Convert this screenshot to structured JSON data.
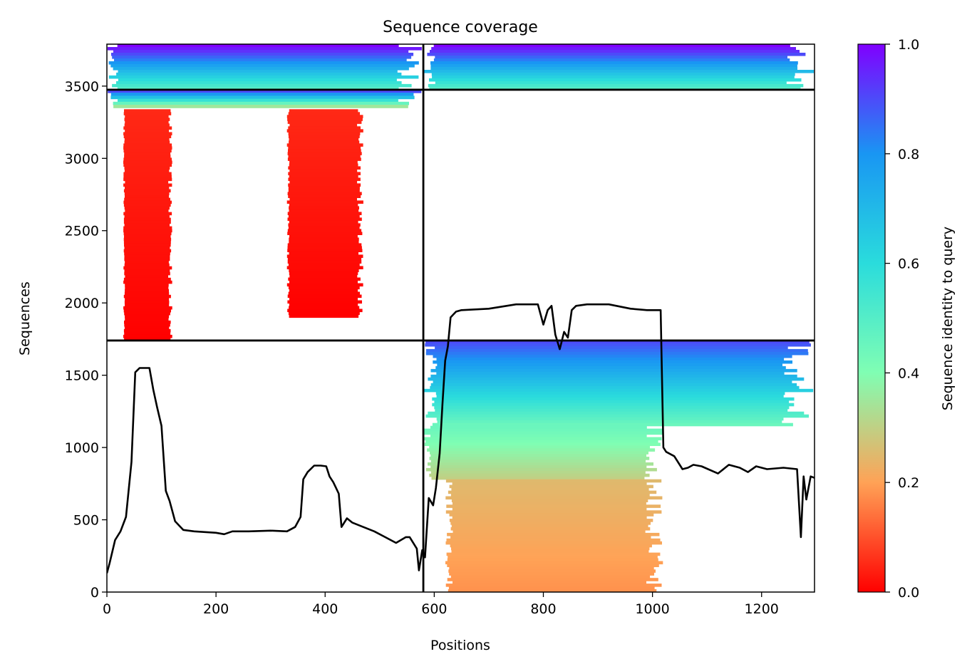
{
  "chart_data": {
    "type": "heatmap",
    "title": "Sequence coverage",
    "xlabel": "Positions",
    "ylabel": "Sequences",
    "xlim": [
      0,
      1297
    ],
    "ylim": [
      0,
      3790
    ],
    "x_ticks": [
      0,
      200,
      400,
      600,
      800,
      1000,
      1200
    ],
    "y_ticks": [
      0,
      500,
      1000,
      1500,
      2000,
      2500,
      3000,
      3500
    ],
    "colorbar": {
      "label": "Sequence identity to query",
      "range": [
        0,
        1
      ],
      "ticks": [
        0.0,
        0.2,
        0.4,
        0.6,
        0.8,
        1.0
      ],
      "tick_labels": [
        "0.0",
        "0.2",
        "0.4",
        "0.6",
        "0.8",
        "1.0"
      ],
      "colormap": "rainbow",
      "color_stops": [
        "#ff0000",
        "#ffa256",
        "#80feb3",
        "#2adcdc",
        "#1996f3",
        "#8000ff"
      ]
    },
    "block_boundaries": {
      "x": 580,
      "y": [
        1740,
        3475
      ]
    },
    "coverage_blocks": [
      {
        "x_range": [
          0,
          580
        ],
        "y_range": [
          3475,
          3790
        ],
        "identity_range": [
          0.5,
          1.0
        ],
        "note": "high identity (top)"
      },
      {
        "x_range": [
          580,
          1297
        ],
        "y_range": [
          3475,
          3790
        ],
        "identity_range": [
          0.5,
          1.0
        ]
      },
      {
        "x_range": [
          0,
          580
        ],
        "y_range": [
          3350,
          3475
        ],
        "identity_range": [
          0.35,
          0.9
        ]
      },
      {
        "x_range": [
          30,
          120
        ],
        "y_range": [
          1740,
          3340
        ],
        "identity_range": [
          0.0,
          0.05
        ]
      },
      {
        "x_range": [
          330,
          470
        ],
        "y_range": [
          1900,
          3340
        ],
        "identity_range": [
          0.0,
          0.05
        ]
      },
      {
        "x_range": [
          580,
          1297
        ],
        "y_range": [
          1150,
          1740
        ],
        "identity_range": [
          0.45,
          0.9
        ]
      },
      {
        "x_range": [
          580,
          1020
        ],
        "y_range": [
          780,
          1150
        ],
        "identity_range": [
          0.3,
          0.45
        ]
      },
      {
        "x_range": [
          620,
          1020
        ],
        "y_range": [
          0,
          780
        ],
        "identity_range": [
          0.18,
          0.25
        ]
      }
    ],
    "series": [
      {
        "type": "line",
        "color": "#000000",
        "x": [
          0,
          5,
          15,
          25,
          35,
          45,
          52,
          60,
          70,
          78,
          85,
          92,
          100,
          108,
          115,
          125,
          140,
          160,
          180,
          200,
          215,
          230,
          260,
          300,
          330,
          345,
          355,
          360,
          368,
          380,
          392,
          402,
          408,
          415,
          420,
          425,
          430,
          440,
          450,
          470,
          490,
          510,
          530,
          548,
          555,
          568,
          572,
          578,
          583,
          590,
          598,
          603,
          610,
          615,
          620,
          625,
          630,
          640,
          650,
          700,
          750,
          790,
          800,
          808,
          815,
          822,
          830,
          838,
          845,
          852,
          860,
          880,
          920,
          960,
          990,
          1015,
          1020,
          1025,
          1040,
          1055,
          1065,
          1075,
          1090,
          1120,
          1140,
          1160,
          1175,
          1190,
          1210,
          1240,
          1265,
          1272,
          1277,
          1282,
          1290,
          1297
        ],
        "y": [
          130,
          200,
          360,
          420,
          520,
          900,
          1520,
          1550,
          1550,
          1550,
          1400,
          1280,
          1150,
          700,
          630,
          490,
          430,
          420,
          415,
          410,
          400,
          420,
          420,
          425,
          420,
          450,
          520,
          780,
          830,
          875,
          875,
          870,
          800,
          760,
          720,
          680,
          450,
          510,
          480,
          450,
          420,
          380,
          340,
          380,
          380,
          300,
          150,
          290,
          240,
          650,
          600,
          720,
          960,
          1300,
          1600,
          1700,
          1900,
          1940,
          1950,
          1960,
          1990,
          1990,
          1850,
          1950,
          1980,
          1780,
          1680,
          1800,
          1760,
          1950,
          1980,
          1990,
          1990,
          1960,
          1950,
          1950,
          1000,
          970,
          940,
          850,
          860,
          880,
          870,
          820,
          880,
          860,
          830,
          870,
          850,
          860,
          850,
          380,
          800,
          640,
          800,
          790
        ]
      }
    ]
  }
}
